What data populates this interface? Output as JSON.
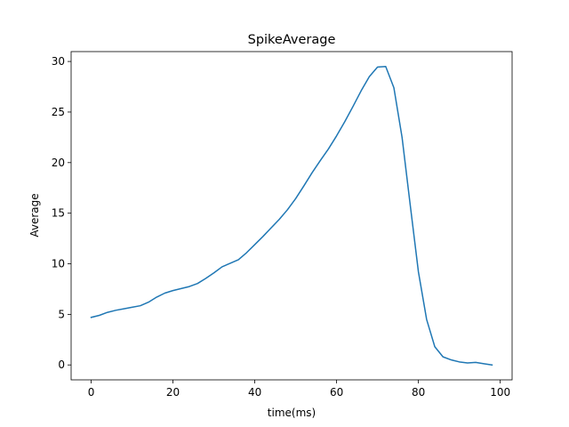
{
  "chart_data": {
    "type": "line",
    "title": "SpikeAverage",
    "xlabel": "time(ms)",
    "ylabel": "Average",
    "xlim": [
      -4.9,
      102.9
    ],
    "ylim": [
      -1.475,
      30.975
    ],
    "xticks": [
      0,
      20,
      40,
      60,
      80,
      100
    ],
    "yticks": [
      0,
      5,
      10,
      15,
      20,
      25,
      30
    ],
    "grid": false,
    "series": [
      {
        "color": "#1f77b4",
        "x": [
          0,
          2,
          4,
          6,
          8,
          10,
          12,
          14,
          16,
          18,
          20,
          22,
          24,
          26,
          28,
          30,
          32,
          34,
          36,
          38,
          40,
          42,
          44,
          46,
          48,
          50,
          52,
          54,
          56,
          58,
          60,
          62,
          64,
          66,
          68,
          70,
          72,
          74,
          76,
          78,
          80,
          82,
          84,
          86,
          88,
          90,
          92,
          94,
          96,
          98
        ],
        "y": [
          4.7,
          4.9,
          5.2,
          5.4,
          5.55,
          5.7,
          5.85,
          6.2,
          6.7,
          7.1,
          7.35,
          7.55,
          7.75,
          8.05,
          8.55,
          9.1,
          9.7,
          10.05,
          10.4,
          11.1,
          11.9,
          12.7,
          13.55,
          14.4,
          15.35,
          16.45,
          17.7,
          19.0,
          20.2,
          21.35,
          22.65,
          24.05,
          25.55,
          27.1,
          28.5,
          29.45,
          29.5,
          27.4,
          22.5,
          15.8,
          9.2,
          4.5,
          1.8,
          0.8,
          0.5,
          0.3,
          0.2,
          0.25,
          0.12,
          0.0
        ]
      }
    ]
  }
}
